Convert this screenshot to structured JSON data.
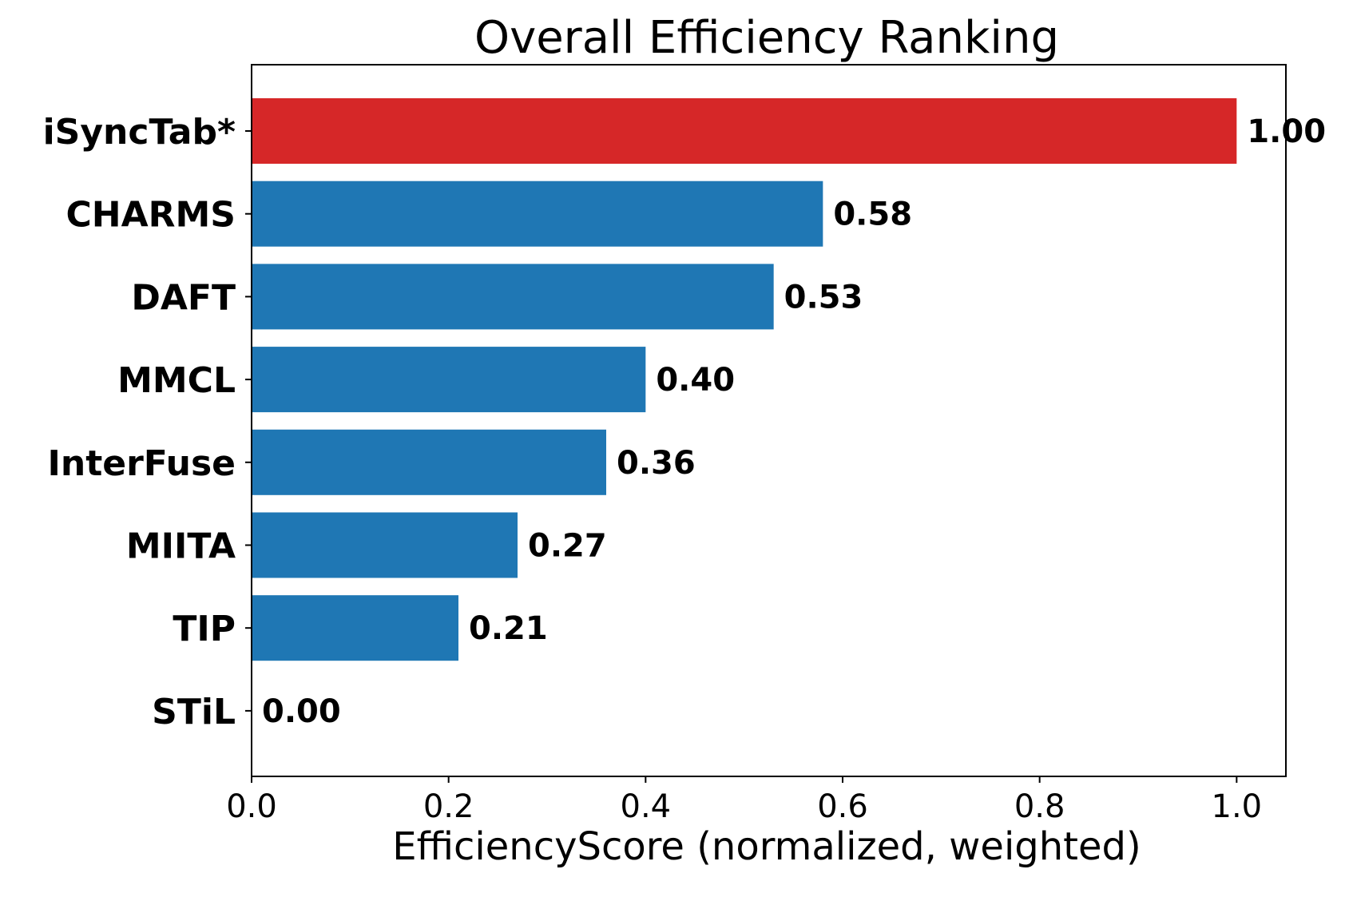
{
  "chart_data": {
    "type": "bar",
    "orientation": "horizontal",
    "title": "Overall Efficiency Ranking",
    "xlabel": "EfficiencyScore (normalized, weighted)",
    "ylabel": "",
    "categories": [
      "iSyncTab*",
      "CHARMS",
      "DAFT",
      "MMCL",
      "InterFuse",
      "MIITA",
      "TIP",
      "STiL"
    ],
    "values": [
      1.0,
      0.58,
      0.53,
      0.4,
      0.36,
      0.27,
      0.21,
      0.0
    ],
    "value_labels": [
      "1.00",
      "0.58",
      "0.53",
      "0.40",
      "0.36",
      "0.27",
      "0.21",
      "0.00"
    ],
    "colors": [
      "#d62728",
      "#1f77b4",
      "#1f77b4",
      "#1f77b4",
      "#1f77b4",
      "#1f77b4",
      "#1f77b4",
      "#1f77b4"
    ],
    "xlim": [
      0,
      1.05
    ],
    "xticks": [
      0.0,
      0.2,
      0.4,
      0.6,
      0.8,
      1.0
    ],
    "xtick_labels": [
      "0.0",
      "0.2",
      "0.4",
      "0.6",
      "0.8",
      "1.0"
    ],
    "grid": false,
    "legend": "none",
    "highlight_color": "#d62728",
    "bar_color": "#1f77b4"
  }
}
